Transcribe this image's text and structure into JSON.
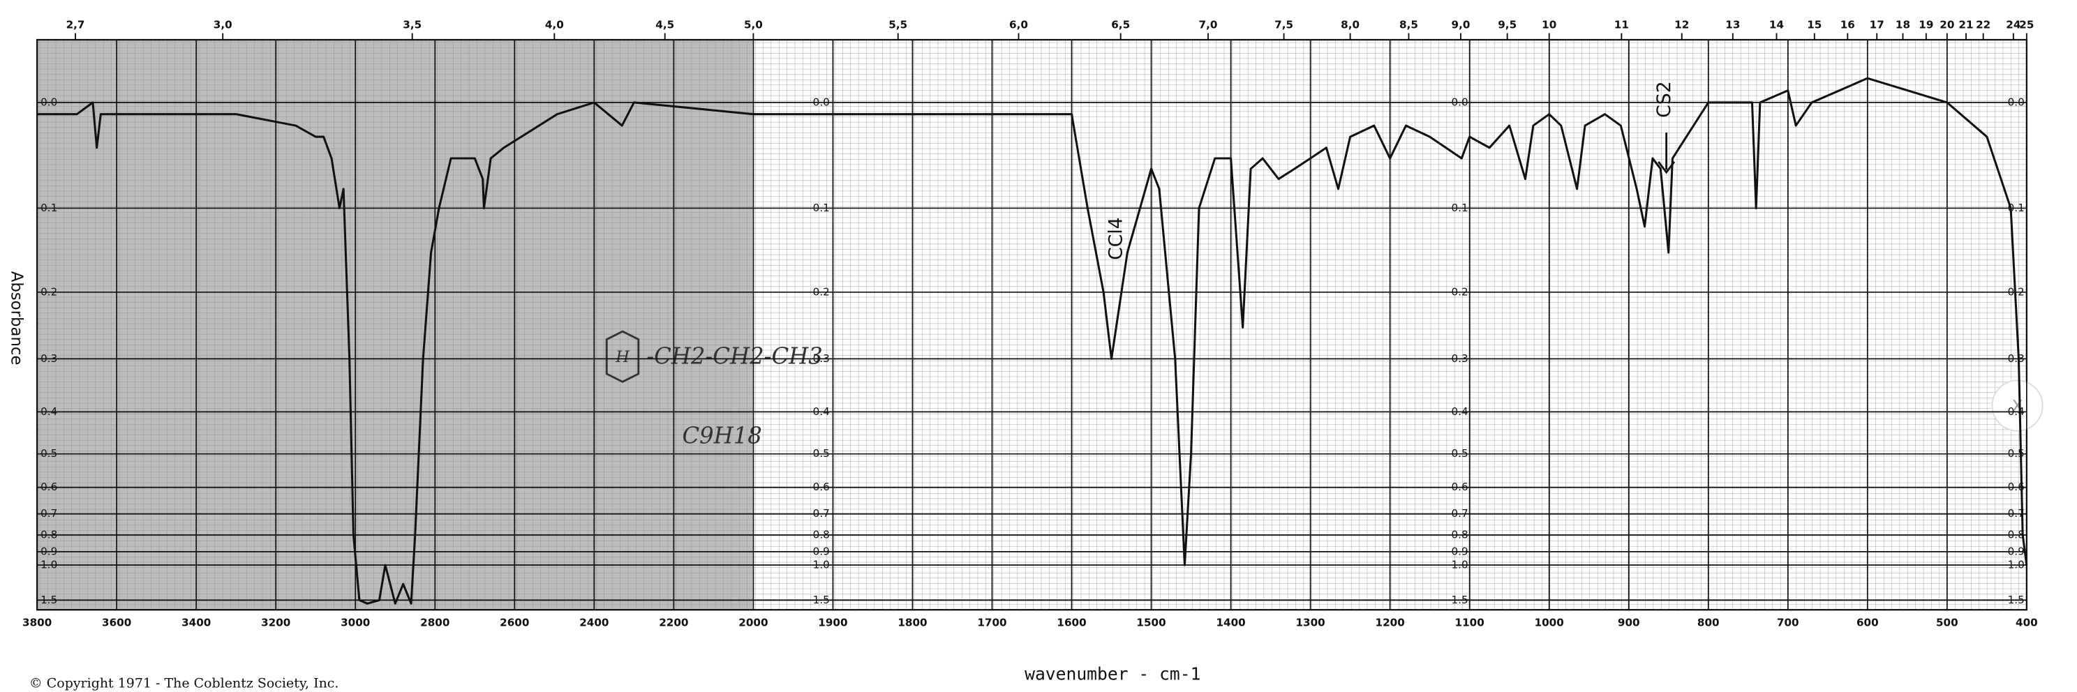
{
  "chart_data": {
    "type": "line",
    "y_axis_label": "Absorbance",
    "x_axis_label": "wavenumber - cm-1",
    "copyright": "© Copyright 1971 - The Coblentz Society, Inc.",
    "annotations": [
      "CCl4",
      "CS2",
      "H",
      "-CH2-CH2-CH3",
      "C9H18"
    ],
    "close_button": "X",
    "xlim": [
      3800,
      400
    ],
    "x_scale_break": 2000,
    "x_scale_ratio": 2,
    "xticks": [
      3800,
      3600,
      3400,
      3200,
      3000,
      2800,
      2600,
      2400,
      2200,
      2000,
      1900,
      1800,
      1700,
      1600,
      1500,
      1400,
      1300,
      1200,
      1100,
      1000,
      900,
      800,
      700,
      600,
      500,
      400
    ],
    "top_ticks": [
      {
        "value": 2.7,
        "label": "2,7"
      },
      {
        "value": 3.0,
        "label": "3,0"
      },
      {
        "value": 3.5,
        "label": "3,5"
      },
      {
        "value": 4.0,
        "label": "4,0"
      },
      {
        "value": 4.5,
        "label": "4,5"
      },
      {
        "value": 5.0,
        "label": "5,0"
      },
      {
        "value": 5.5,
        "label": "5,5"
      },
      {
        "value": 6.0,
        "label": "6,0"
      },
      {
        "value": 6.5,
        "label": "6,5"
      },
      {
        "value": 7.0,
        "label": "7,0"
      },
      {
        "value": 7.5,
        "label": "7,5"
      },
      {
        "value": 8.0,
        "label": "8,0"
      },
      {
        "value": 8.5,
        "label": "8,5"
      },
      {
        "value": 9.0,
        "label": "9,0"
      },
      {
        "value": 9.5,
        "label": "9,5"
      },
      10,
      11,
      12,
      13,
      14,
      15,
      16,
      17,
      18,
      19,
      20,
      21,
      22,
      24,
      25
    ],
    "ylim": [
      -0.05,
      1.89
    ],
    "y_scale": "transmittance",
    "yticks": [
      {
        "value": 0,
        "label": "0.0"
      },
      0.1,
      0.2,
      0.3,
      0.4,
      0.5,
      0.6,
      0.7,
      0.8,
      0.9,
      {
        "value": 1,
        "label": "1.0"
      },
      1.5
    ],
    "grid": true,
    "series": [
      {
        "color": "#111111",
        "x": [
          3800,
          3700,
          3660,
          3650,
          3640,
          3600,
          3300,
          3150,
          3100,
          3080,
          3060,
          3040,
          3030,
          3015,
          3005,
          2990,
          2970,
          2940,
          2925,
          2900,
          2880,
          2860,
          2850,
          2830,
          2810,
          2790,
          2760,
          2700,
          2680,
          2677,
          2660,
          2627,
          2493,
          2400,
          2330,
          2300,
          2000,
          1700,
          1600,
          1580,
          1560,
          1550,
          1530,
          1500,
          1490,
          1470,
          1458,
          1450,
          1440,
          1420,
          1400,
          1385,
          1375,
          1360,
          1340,
          1320,
          1300,
          1280,
          1265,
          1250,
          1220,
          1200,
          1180,
          1150,
          1110,
          1100,
          1075,
          1050,
          1030,
          1020,
          1000,
          985,
          965,
          955,
          930,
          910,
          890,
          880,
          870,
          860,
          850,
          845,
          800,
          745,
          740,
          735,
          700,
          690,
          670,
          600,
          500,
          450,
          420,
          410,
          405,
          400
        ],
        "values": [
          0.01,
          0.01,
          0.0,
          0.04,
          0.01,
          0.01,
          0.01,
          0.02,
          0.03,
          0.03,
          0.05,
          0.1,
          0.08,
          0.3,
          0.8,
          1.5,
          1.6,
          1.5,
          1.0,
          1.6,
          1.2,
          1.6,
          0.8,
          0.3,
          0.15,
          0.1,
          0.05,
          0.05,
          0.07,
          0.1,
          0.05,
          0.04,
          0.01,
          0.0,
          0.02,
          0.0,
          0.01,
          0.01,
          0.01,
          0.1,
          0.2,
          0.3,
          0.15,
          0.06,
          0.08,
          0.3,
          1.0,
          0.5,
          0.1,
          0.05,
          0.05,
          0.25,
          0.06,
          0.05,
          0.07,
          0.06,
          0.05,
          0.04,
          0.08,
          0.03,
          0.02,
          0.05,
          0.02,
          0.03,
          0.05,
          0.03,
          0.04,
          0.02,
          0.07,
          0.02,
          0.01,
          0.02,
          0.08,
          0.02,
          0.01,
          0.02,
          0.08,
          0.12,
          0.05,
          0.06,
          0.15,
          0.05,
          0.0,
          0.0,
          0.1,
          0.0,
          -0.01,
          0.02,
          0.0,
          -0.02,
          0.0,
          0.03,
          0.1,
          0.3,
          0.8,
          1.0
        ]
      }
    ]
  }
}
